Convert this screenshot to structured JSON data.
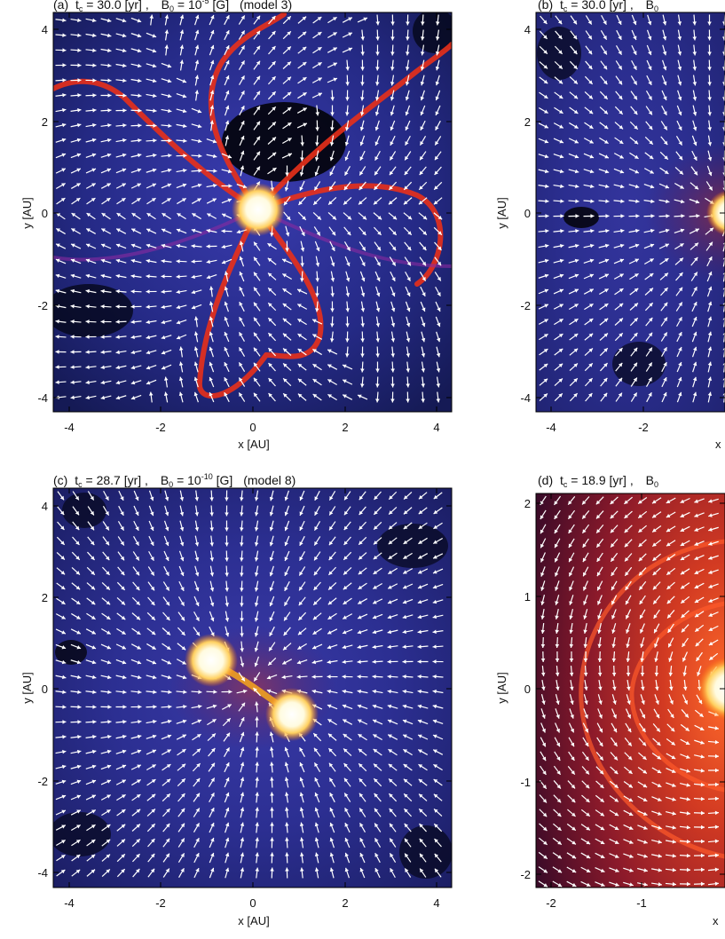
{
  "figure": {
    "panels": [
      {
        "id": "a",
        "title_prefix": "(a)",
        "title_t": "t",
        "title_t_sub": "c",
        "title_t_rest": " = 30.0 [yr] ,",
        "title_b": "B",
        "title_b_sub": "0",
        "title_b_eq": " = 10",
        "title_b_exp": "-5",
        "title_b_rest": " [G]",
        "title_model": "(model 3)",
        "xlabel": "x [AU]",
        "ylabel": "y [AU]",
        "xticks": [
          "-4",
          "-2",
          "0",
          "2",
          "4"
        ],
        "yticks": [
          "4",
          "2",
          "0",
          "-2",
          "-4"
        ],
        "colormap": "blue-black with red spiral filaments",
        "flow": "outflow pattern, spiral arms",
        "star_count": 1
      },
      {
        "id": "b",
        "title_prefix": "(b)",
        "title_t": "t",
        "title_t_sub": "c",
        "title_t_rest": " = 30.0 [yr] ,",
        "title_b": "B",
        "title_b_sub": "0",
        "title_b_eq": "",
        "title_b_exp": "",
        "title_b_rest": "",
        "title_model": "",
        "xlabel": "x",
        "ylabel": "y [AU]",
        "xticks": [
          "-4",
          "-2"
        ],
        "yticks": [
          "4",
          "2",
          "0",
          "-2",
          "-4"
        ],
        "colormap": "blue-black",
        "flow": "radial inflow",
        "star_count": 1
      },
      {
        "id": "c",
        "title_prefix": "(c)",
        "title_t": "t",
        "title_t_sub": "c",
        "title_t_rest": " = 28.7 [yr] ,",
        "title_b": "B",
        "title_b_sub": "0",
        "title_b_eq": " = 10",
        "title_b_exp": "-10",
        "title_b_rest": " [G]",
        "title_model": "(model 8)",
        "xlabel": "x [AU]",
        "ylabel": "y [AU]",
        "xticks": [
          "-4",
          "-2",
          "0",
          "2",
          "4"
        ],
        "yticks": [
          "4",
          "2",
          "0",
          "-2",
          "-4"
        ],
        "colormap": "blue-black",
        "flow": "radial inflow toward binary",
        "star_count": 2
      },
      {
        "id": "d",
        "title_prefix": "(d)",
        "title_t": "t",
        "title_t_sub": "c",
        "title_t_rest": " = 18.9 [yr] ,",
        "title_b": "B",
        "title_b_sub": "0",
        "title_b_eq": "",
        "title_b_exp": "",
        "title_b_rest": "",
        "title_model": "",
        "xlabel": "x",
        "ylabel": "y [AU]",
        "xticks": [
          "-2",
          "-1"
        ],
        "yticks": [
          "2",
          "1",
          "0",
          "-1",
          "-2"
        ],
        "colormap": "dark red-orange",
        "flow": "rotating disk",
        "star_count": 1
      }
    ]
  }
}
